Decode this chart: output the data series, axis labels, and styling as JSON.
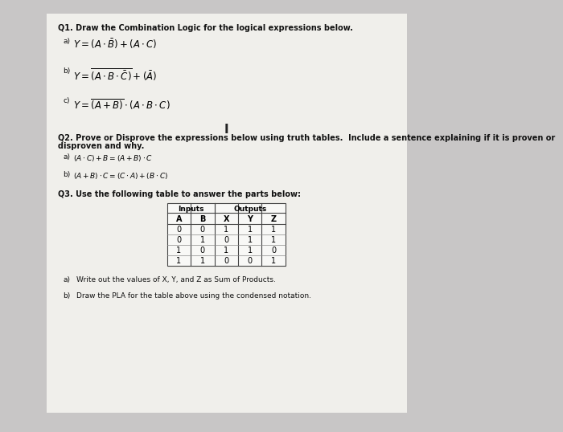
{
  "bg_color": "#c8c6c6",
  "paper_color": "#f0efeb",
  "title_q1": "Q1. Draw the Combination Logic for the logical expressions below.",
  "q2_line1": "Q2. Prove or Disprove the expressions below using truth tables.  Include a sentence explaining if it is proven or",
  "q2_line2": "disproven and why.",
  "q3_title": "Q3. Use the following table to answer the parts below:",
  "table_headers_inputs": "Inputs",
  "table_headers_outputs": "Outputs",
  "table_col_headers": [
    "A",
    "B",
    "X",
    "Y",
    "Z"
  ],
  "table_data": [
    [
      0,
      0,
      1,
      1,
      1
    ],
    [
      0,
      1,
      0,
      1,
      1
    ],
    [
      1,
      0,
      1,
      1,
      0
    ],
    [
      1,
      1,
      0,
      0,
      1
    ]
  ],
  "fs_heading": 7.0,
  "fs_body": 6.5,
  "fs_math": 8.5,
  "fs_label": 6.5,
  "fs_table": 7.0
}
